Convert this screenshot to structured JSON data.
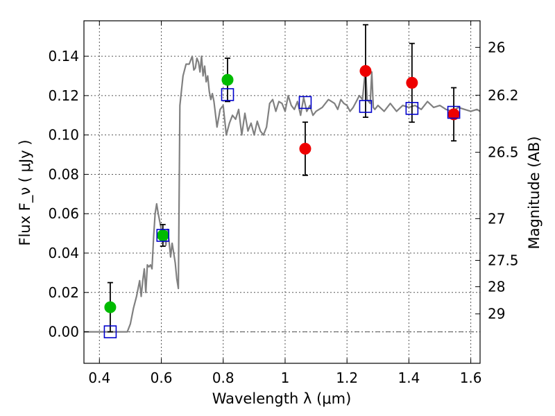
{
  "chart_data": {
    "type": "scatter",
    "xlabel": "Wavelength  λ (μm)",
    "ylabel": "Flux  F_ν  ( μJy )",
    "y2label": "Magnitude (AB)",
    "xlim": [
      0.35,
      1.63
    ],
    "ylim": [
      -0.016,
      0.158
    ],
    "xticks": [
      0.4,
      0.6,
      0.8,
      1.0,
      1.2,
      1.4,
      1.6
    ],
    "xtick_labels": [
      "0.4",
      "0.6",
      "0.8",
      "1",
      "1.2",
      "1.4",
      "1.6"
    ],
    "yticks": [
      0.0,
      0.02,
      0.04,
      0.06,
      0.08,
      0.1,
      0.12,
      0.14
    ],
    "ytick_labels": [
      "0.00",
      "0.02",
      "0.04",
      "0.06",
      "0.08",
      "0.10",
      "0.12",
      "0.14"
    ],
    "y2ticks": [
      {
        "label": "26",
        "flux": 0.1445
      },
      {
        "label": "26.2",
        "flux": 0.1202
      },
      {
        "label": "26.5",
        "flux": 0.0912
      },
      {
        "label": "27",
        "flux": 0.0575
      },
      {
        "label": "27.5",
        "flux": 0.0363
      },
      {
        "label": "28",
        "flux": 0.0229
      },
      {
        "label": "29",
        "flux": 0.0091
      }
    ],
    "grid": true,
    "colors": {
      "template": "#808080",
      "green": "#00bb00",
      "red": "#ee0000",
      "model_box": "#0000cc",
      "errorbar": "#000000",
      "zero_line": "#555555"
    },
    "template_spectrum": {
      "x": [
        0.35,
        0.49,
        0.5,
        0.51,
        0.52,
        0.53,
        0.535,
        0.54,
        0.545,
        0.55,
        0.555,
        0.56,
        0.565,
        0.57,
        0.575,
        0.58,
        0.585,
        0.59,
        0.595,
        0.6,
        0.605,
        0.61,
        0.615,
        0.62,
        0.625,
        0.63,
        0.635,
        0.64,
        0.645,
        0.65,
        0.655,
        0.66,
        0.67,
        0.68,
        0.69,
        0.7,
        0.705,
        0.71,
        0.715,
        0.72,
        0.725,
        0.73,
        0.735,
        0.74,
        0.745,
        0.75,
        0.755,
        0.76,
        0.765,
        0.77,
        0.78,
        0.79,
        0.8,
        0.81,
        0.82,
        0.83,
        0.84,
        0.85,
        0.86,
        0.87,
        0.88,
        0.89,
        0.9,
        0.91,
        0.92,
        0.93,
        0.94,
        0.95,
        0.96,
        0.97,
        0.98,
        0.99,
        1.0,
        1.01,
        1.02,
        1.03,
        1.04,
        1.05,
        1.06,
        1.07,
        1.08,
        1.09,
        1.1,
        1.12,
        1.14,
        1.16,
        1.17,
        1.18,
        1.19,
        1.2,
        1.21,
        1.22,
        1.23,
        1.24,
        1.25,
        1.26,
        1.265,
        1.27,
        1.275,
        1.28,
        1.285,
        1.29,
        1.3,
        1.32,
        1.34,
        1.36,
        1.38,
        1.4,
        1.42,
        1.44,
        1.46,
        1.48,
        1.5,
        1.52,
        1.54,
        1.56,
        1.58,
        1.6,
        1.62,
        1.63
      ],
      "y": [
        0.0,
        0.0,
        0.004,
        0.012,
        0.018,
        0.026,
        0.018,
        0.026,
        0.032,
        0.02,
        0.034,
        0.033,
        0.034,
        0.032,
        0.048,
        0.06,
        0.065,
        0.06,
        0.056,
        0.052,
        0.045,
        0.05,
        0.044,
        0.052,
        0.046,
        0.038,
        0.045,
        0.04,
        0.035,
        0.027,
        0.022,
        0.115,
        0.13,
        0.136,
        0.136,
        0.14,
        0.133,
        0.134,
        0.139,
        0.137,
        0.132,
        0.14,
        0.13,
        0.135,
        0.127,
        0.13,
        0.122,
        0.118,
        0.121,
        0.117,
        0.104,
        0.113,
        0.115,
        0.1,
        0.106,
        0.11,
        0.108,
        0.113,
        0.1,
        0.111,
        0.102,
        0.106,
        0.1,
        0.107,
        0.102,
        0.1,
        0.104,
        0.116,
        0.118,
        0.112,
        0.117,
        0.116,
        0.112,
        0.12,
        0.115,
        0.113,
        0.117,
        0.11,
        0.119,
        0.112,
        0.115,
        0.11,
        0.112,
        0.114,
        0.118,
        0.116,
        0.113,
        0.118,
        0.116,
        0.115,
        0.112,
        0.114,
        0.117,
        0.12,
        0.118,
        0.134,
        0.118,
        0.117,
        0.116,
        0.132,
        0.114,
        0.113,
        0.115,
        0.112,
        0.116,
        0.112,
        0.115,
        0.114,
        0.115,
        0.113,
        0.117,
        0.114,
        0.115,
        0.113,
        0.112,
        0.114,
        0.113,
        0.112,
        0.113,
        0.112
      ]
    },
    "observed_points": [
      {
        "x": 0.435,
        "y": 0.0125,
        "err": 0.0125,
        "color": "green"
      },
      {
        "x": 0.605,
        "y": 0.049,
        "err": 0.0055,
        "color": "green"
      },
      {
        "x": 0.814,
        "y": 0.128,
        "err": 0.011,
        "color": "green"
      },
      {
        "x": 1.065,
        "y": 0.093,
        "err": 0.0135,
        "color": "red"
      },
      {
        "x": 1.26,
        "y": 0.1325,
        "err": 0.0235,
        "color": "red"
      },
      {
        "x": 1.41,
        "y": 0.1265,
        "err": 0.02,
        "color": "red"
      },
      {
        "x": 1.545,
        "y": 0.1105,
        "err": 0.0135,
        "color": "red"
      }
    ],
    "model_boxes": [
      {
        "x": 0.435,
        "y": 0.0
      },
      {
        "x": 0.605,
        "y": 0.049
      },
      {
        "x": 0.814,
        "y": 0.1205
      },
      {
        "x": 1.065,
        "y": 0.1165
      },
      {
        "x": 1.26,
        "y": 0.1145
      },
      {
        "x": 1.41,
        "y": 0.1135
      },
      {
        "x": 1.545,
        "y": 0.1115
      }
    ]
  }
}
